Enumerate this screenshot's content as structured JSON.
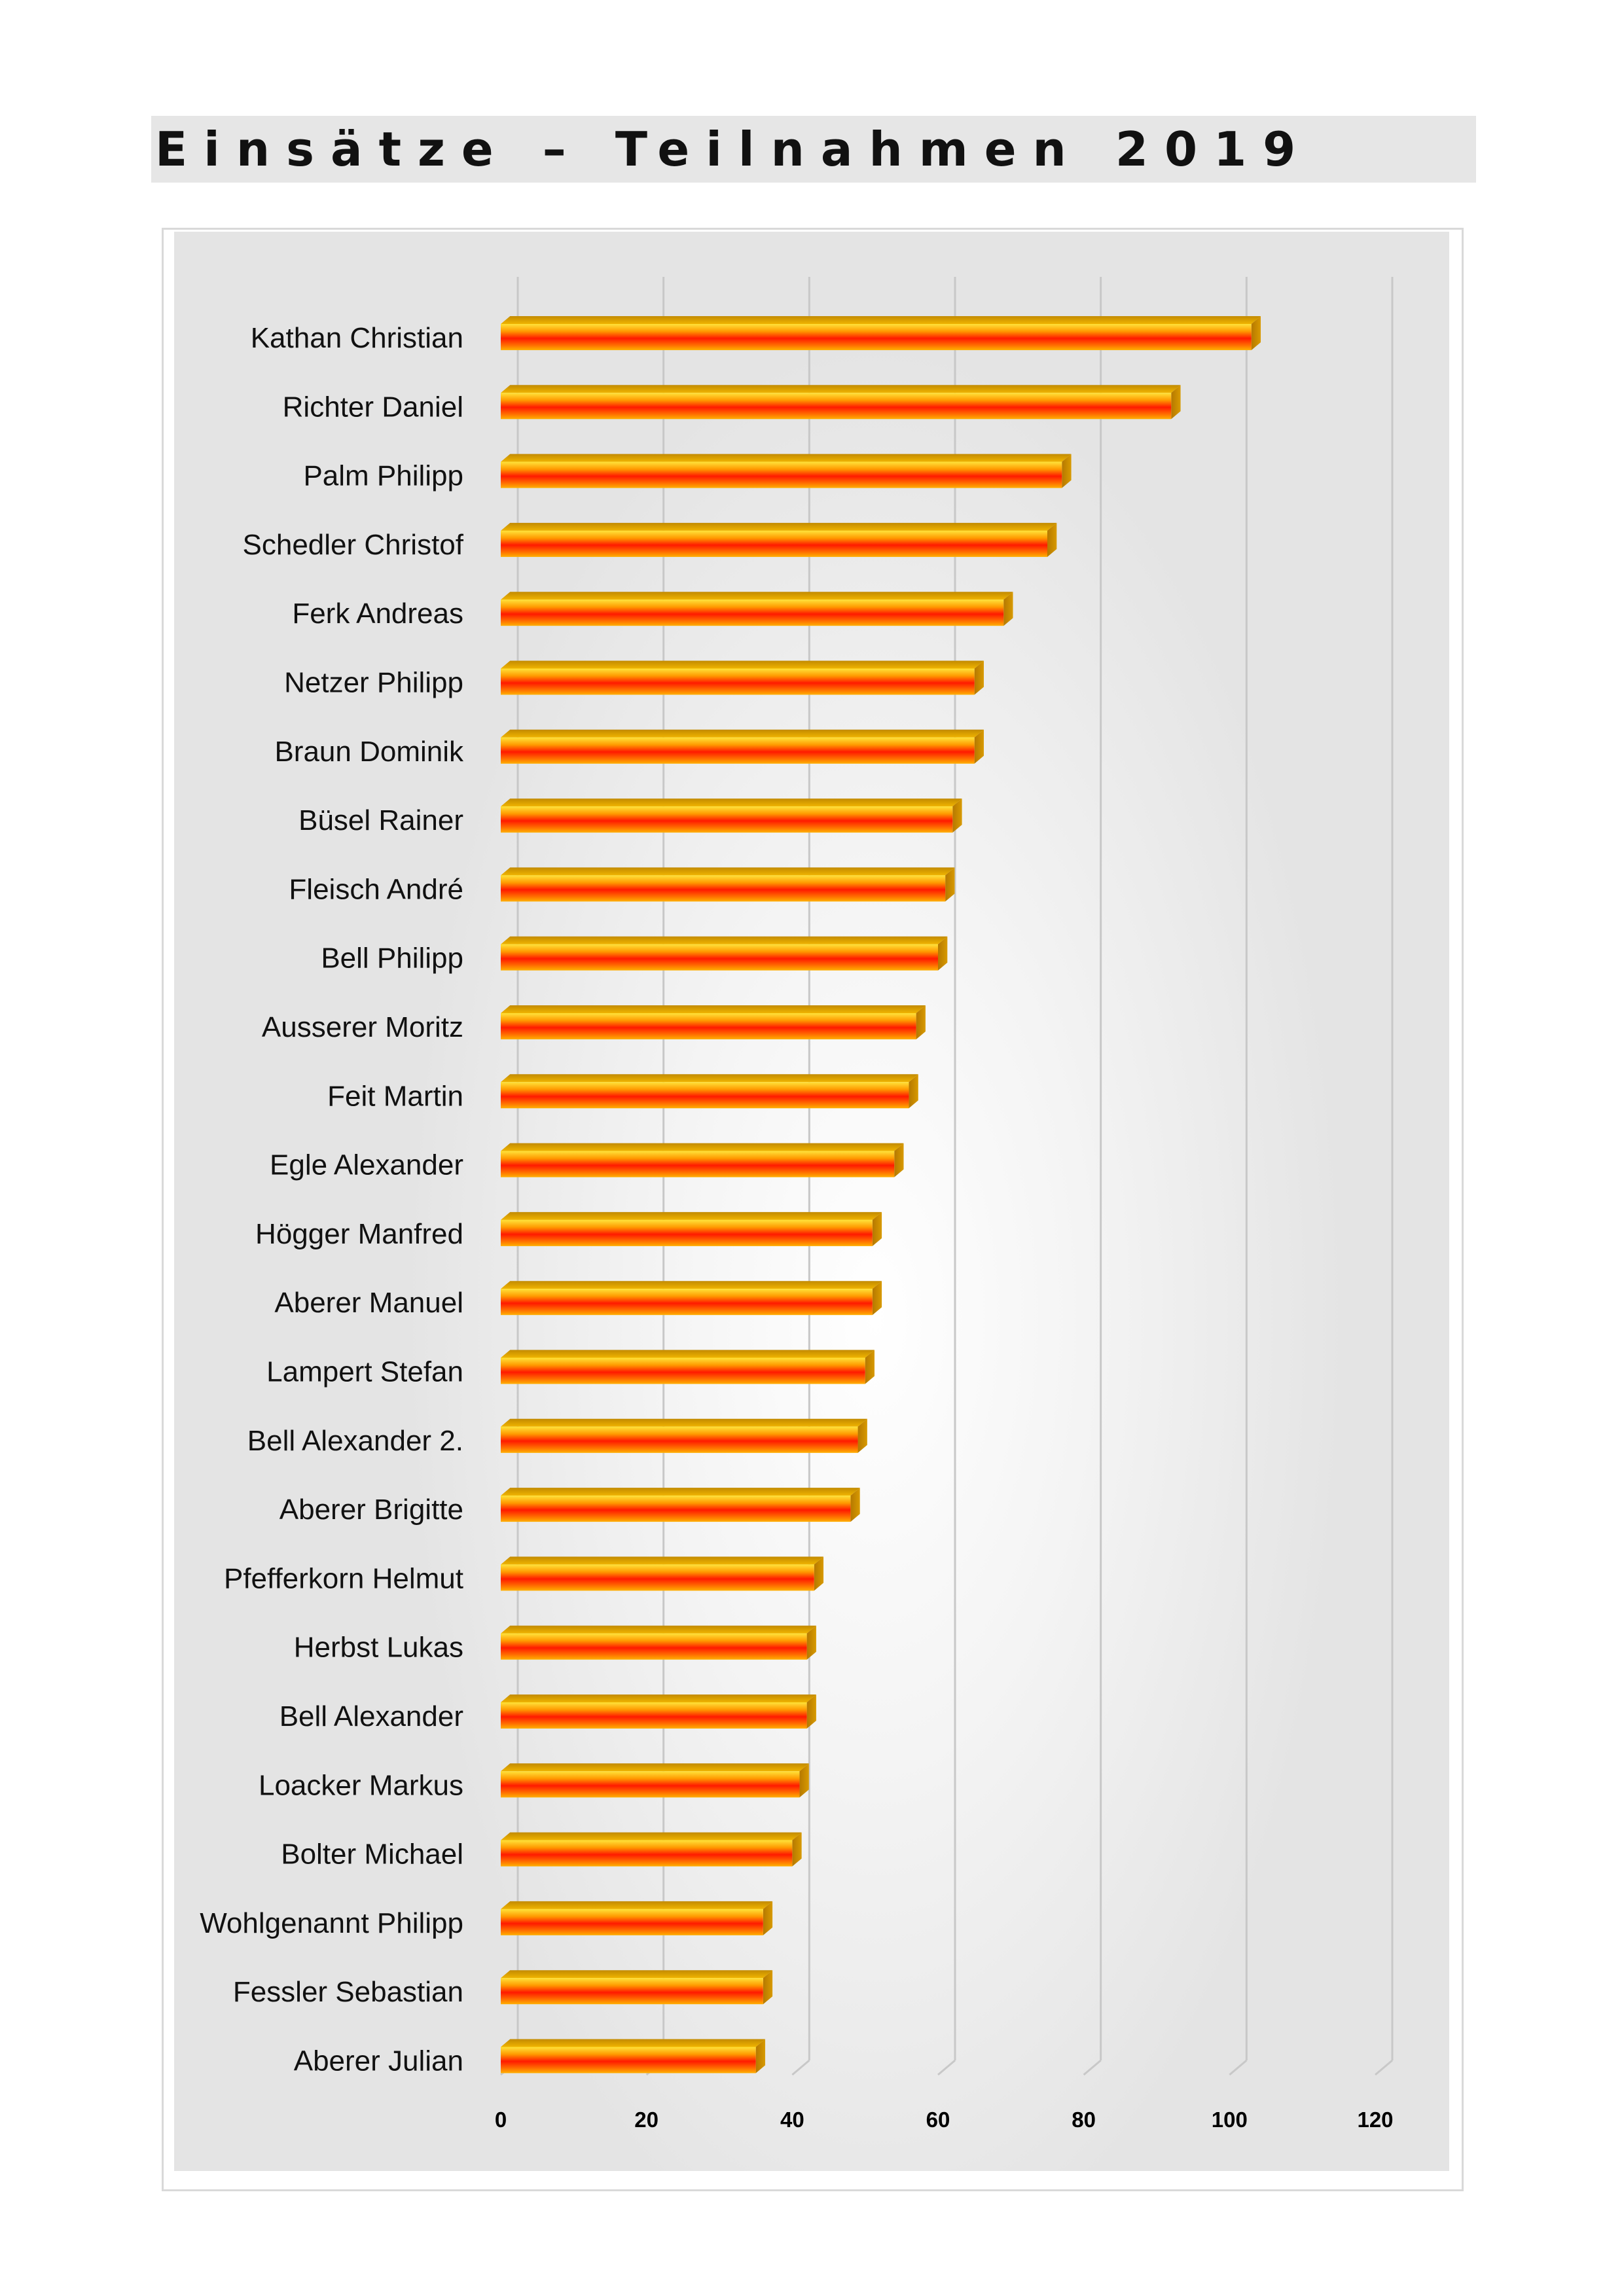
{
  "page": {
    "title": "Einsätze – Teilnahmen 2019"
  },
  "chart_data": {
    "type": "bar",
    "orientation": "horizontal",
    "title": "Einsätze – Teilnahmen 2019",
    "categories": [
      "Kathan Christian",
      "Richter Daniel",
      "Palm Philipp",
      "Schedler Christof",
      "Ferk Andreas",
      "Netzer Philipp",
      "Braun Dominik",
      "Büsel Rainer",
      "Fleisch André",
      "Bell Philipp",
      "Ausserer Moritz",
      "Feit Martin",
      "Egle Alexander",
      "Högger Manfred",
      "Aberer Manuel",
      "Lampert Stefan",
      "Bell Alexander 2.",
      "Aberer Brigitte",
      "Pfefferkorn Helmut",
      "Herbst Lukas",
      "Bell Alexander",
      "Loacker Markus",
      "Bolter Michael",
      "Wohlgenannt Philipp",
      "Fessler Sebastian",
      "Aberer Julian"
    ],
    "values": [
      103,
      92,
      77,
      75,
      69,
      65,
      65,
      62,
      61,
      60,
      57,
      56,
      54,
      51,
      51,
      50,
      49,
      48,
      43,
      42,
      42,
      41,
      40,
      36,
      36,
      35
    ],
    "xlim": [
      0,
      120
    ],
    "xticks": [
      "0",
      "20",
      "40",
      "60",
      "80",
      "100",
      "120"
    ],
    "grid": true,
    "legend": "none",
    "colors": {
      "bar_top": "#ffcc00",
      "bar_mid": "#ff6a00",
      "bar_core": "#ff1a00",
      "bar_edge": "#e6a100",
      "bar_end": "#c98e00",
      "grid": "#c8c8c8",
      "label": "#111111"
    }
  }
}
